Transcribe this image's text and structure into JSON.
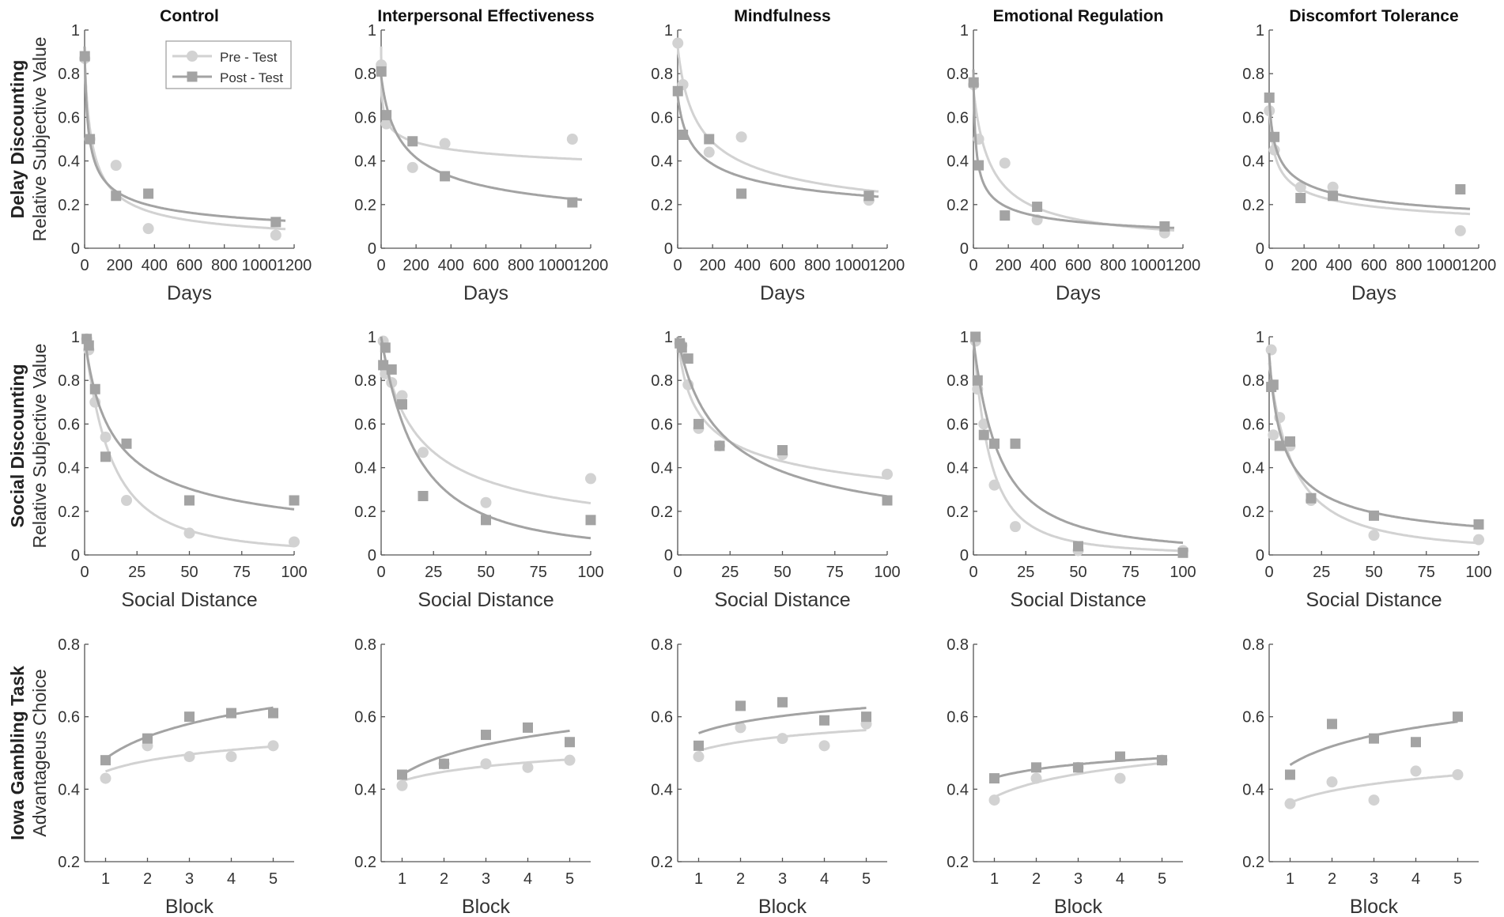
{
  "figure": {
    "columns": [
      "Control",
      "Interpersonal Effectiveness",
      "Mindfulness",
      "Emotional Regulation",
      "Discomfort Tolerance"
    ],
    "rows": [
      {
        "label": "Delay Discounting",
        "ylabel": "Relative Subjective Value",
        "xlabel": "Days"
      },
      {
        "label": "Social Discounting",
        "ylabel": "Relative Subjective Value",
        "xlabel": "Social Distance"
      },
      {
        "label": "Iowa Gambling Task",
        "ylabel": "Advantageus Choice",
        "xlabel": "Block"
      }
    ],
    "legend": {
      "pre": "Pre  - Test",
      "post": "Post - Test"
    },
    "colors": {
      "pre": "#d2d2d2",
      "post": "#a3a3a3",
      "axis": "#555555",
      "text": "#333333"
    }
  },
  "chart_data": [
    {
      "type": "scatter",
      "row": "Delay Discounting",
      "xlabel": "Days",
      "ylabel": "Relative Subjective Value",
      "xlim": [
        0,
        1200
      ],
      "ylim": [
        0,
        1
      ],
      "xticks": [
        "0",
        "200",
        "400",
        "600",
        "800",
        "1000",
        "1200"
      ],
      "yticks": [
        "0",
        "0.2",
        "0.4",
        "0.6",
        "0.8",
        "1"
      ],
      "panels": [
        {
          "title": "Control",
          "x": [
            1,
            30,
            180,
            365,
            1095
          ],
          "series": [
            {
              "name": "Pre  - Test",
              "values": [
                0.87,
                0.5,
                0.38,
                0.09,
                0.06
              ]
            },
            {
              "name": "Post - Test",
              "values": [
                0.88,
                0.5,
                0.24,
                0.25,
                0.12
              ]
            }
          ]
        },
        {
          "title": "Interpersonal Effectiveness",
          "x": [
            1,
            30,
            180,
            365,
            1095
          ],
          "series": [
            {
              "name": "Pre  - Test",
              "values": [
                0.84,
                0.57,
                0.37,
                0.48,
                0.5
              ]
            },
            {
              "name": "Post - Test",
              "values": [
                0.81,
                0.61,
                0.49,
                0.33,
                0.21
              ]
            }
          ]
        },
        {
          "title": "Mindfulness",
          "x": [
            1,
            30,
            180,
            365,
            1095
          ],
          "series": [
            {
              "name": "Pre  - Test",
              "values": [
                0.94,
                0.75,
                0.44,
                0.51,
                0.22
              ]
            },
            {
              "name": "Post - Test",
              "values": [
                0.72,
                0.52,
                0.5,
                0.25,
                0.24
              ]
            }
          ]
        },
        {
          "title": "Emotional Regulation",
          "x": [
            1,
            30,
            180,
            365,
            1095
          ],
          "series": [
            {
              "name": "Pre  - Test",
              "values": [
                0.75,
                0.5,
                0.39,
                0.13,
                0.07
              ]
            },
            {
              "name": "Post - Test",
              "values": [
                0.76,
                0.38,
                0.15,
                0.19,
                0.1
              ]
            }
          ]
        },
        {
          "title": "Discomfort Tolerance",
          "x": [
            1,
            30,
            180,
            365,
            1095
          ],
          "series": [
            {
              "name": "Pre  - Test",
              "values": [
                0.63,
                0.45,
                0.28,
                0.28,
                0.08
              ]
            },
            {
              "name": "Post - Test",
              "values": [
                0.69,
                0.51,
                0.23,
                0.24,
                0.27
              ]
            }
          ]
        }
      ]
    },
    {
      "type": "scatter",
      "row": "Social Discounting",
      "xlabel": "Social Distance",
      "ylabel": "Relative Subjective Value",
      "xlim": [
        0,
        100
      ],
      "ylim": [
        0,
        1
      ],
      "xticks": [
        "0",
        "25",
        "50",
        "75",
        "100"
      ],
      "yticks": [
        "0",
        "0.2",
        "0.4",
        "0.6",
        "0.8",
        "1"
      ],
      "panels": [
        {
          "title": "Control",
          "x": [
            1,
            2,
            5,
            10,
            20,
            50,
            100
          ],
          "series": [
            {
              "name": "Pre  - Test",
              "values": [
                0.99,
                0.94,
                0.7,
                0.54,
                0.25,
                0.1,
                0.06
              ]
            },
            {
              "name": "Post - Test",
              "values": [
                0.99,
                0.96,
                0.76,
                0.45,
                0.51,
                0.25,
                0.25
              ]
            }
          ]
        },
        {
          "title": "Interpersonal Effectiveness",
          "x": [
            1,
            2,
            5,
            10,
            20,
            50,
            100
          ],
          "series": [
            {
              "name": "Pre  - Test",
              "values": [
                0.98,
                0.83,
                0.79,
                0.73,
                0.47,
                0.24,
                0.35
              ]
            },
            {
              "name": "Post - Test",
              "values": [
                0.87,
                0.95,
                0.85,
                0.69,
                0.27,
                0.16,
                0.16
              ]
            }
          ]
        },
        {
          "title": "Mindfulness",
          "x": [
            1,
            2,
            5,
            10,
            20,
            50,
            100
          ],
          "series": [
            {
              "name": "Pre  - Test",
              "values": [
                0.97,
                0.96,
                0.78,
                0.58,
                0.5,
                0.46,
                0.37
              ]
            },
            {
              "name": "Post - Test",
              "values": [
                0.97,
                0.95,
                0.9,
                0.6,
                0.5,
                0.48,
                0.25
              ]
            }
          ]
        },
        {
          "title": "Emotional Regulation",
          "x": [
            1,
            2,
            5,
            10,
            20,
            50,
            100
          ],
          "series": [
            {
              "name": "Pre  - Test",
              "values": [
                0.98,
                0.76,
                0.6,
                0.32,
                0.13,
                0.02,
                0.02
              ]
            },
            {
              "name": "Post - Test",
              "values": [
                1.0,
                0.8,
                0.55,
                0.51,
                0.51,
                0.04,
                0.01
              ]
            }
          ]
        },
        {
          "title": "Discomfort Tolerance",
          "x": [
            1,
            2,
            5,
            10,
            20,
            50,
            100
          ],
          "series": [
            {
              "name": "Pre  - Test",
              "values": [
                0.94,
                0.55,
                0.63,
                0.5,
                0.25,
                0.09,
                0.07
              ]
            },
            {
              "name": "Post - Test",
              "values": [
                0.77,
                0.78,
                0.5,
                0.52,
                0.26,
                0.18,
                0.14
              ]
            }
          ]
        }
      ]
    },
    {
      "type": "scatter",
      "row": "Iowa Gambling Task",
      "xlabel": "Block",
      "ylabel": "Advantageus Choice",
      "xlim": [
        0.5,
        5.5
      ],
      "ylim": [
        0.2,
        0.8
      ],
      "xticks": [
        "1",
        "2",
        "3",
        "4",
        "5"
      ],
      "yticks": [
        "0.2",
        "0.4",
        "0.6",
        "0.8"
      ],
      "panels": [
        {
          "title": "Control",
          "x": [
            1,
            2,
            3,
            4,
            5
          ],
          "series": [
            {
              "name": "Pre  - Test",
              "values": [
                0.43,
                0.52,
                0.49,
                0.49,
                0.52
              ]
            },
            {
              "name": "Post - Test",
              "values": [
                0.48,
                0.54,
                0.6,
                0.61,
                0.61
              ]
            }
          ]
        },
        {
          "title": "Interpersonal Effectiveness",
          "x": [
            1,
            2,
            3,
            4,
            5
          ],
          "series": [
            {
              "name": "Pre  - Test",
              "values": [
                0.41,
                0.47,
                0.47,
                0.46,
                0.48
              ]
            },
            {
              "name": "Post - Test",
              "values": [
                0.44,
                0.47,
                0.55,
                0.57,
                0.53
              ]
            }
          ]
        },
        {
          "title": "Mindfulness",
          "x": [
            1,
            2,
            3,
            4,
            5
          ],
          "series": [
            {
              "name": "Pre  - Test",
              "values": [
                0.49,
                0.57,
                0.54,
                0.52,
                0.58
              ]
            },
            {
              "name": "Post - Test",
              "values": [
                0.52,
                0.63,
                0.64,
                0.59,
                0.6
              ]
            }
          ]
        },
        {
          "title": "Emotional Regulation",
          "x": [
            1,
            2,
            3,
            4,
            5
          ],
          "series": [
            {
              "name": "Pre  - Test",
              "values": [
                0.37,
                0.43,
                0.46,
                0.43,
                0.48
              ]
            },
            {
              "name": "Post - Test",
              "values": [
                0.43,
                0.46,
                0.46,
                0.49,
                0.48
              ]
            }
          ]
        },
        {
          "title": "Discomfort Tolerance",
          "x": [
            1,
            2,
            3,
            4,
            5
          ],
          "series": [
            {
              "name": "Pre  - Test",
              "values": [
                0.36,
                0.42,
                0.37,
                0.45,
                0.44
              ]
            },
            {
              "name": "Post - Test",
              "values": [
                0.44,
                0.58,
                0.54,
                0.53,
                0.6
              ]
            }
          ]
        }
      ]
    }
  ]
}
